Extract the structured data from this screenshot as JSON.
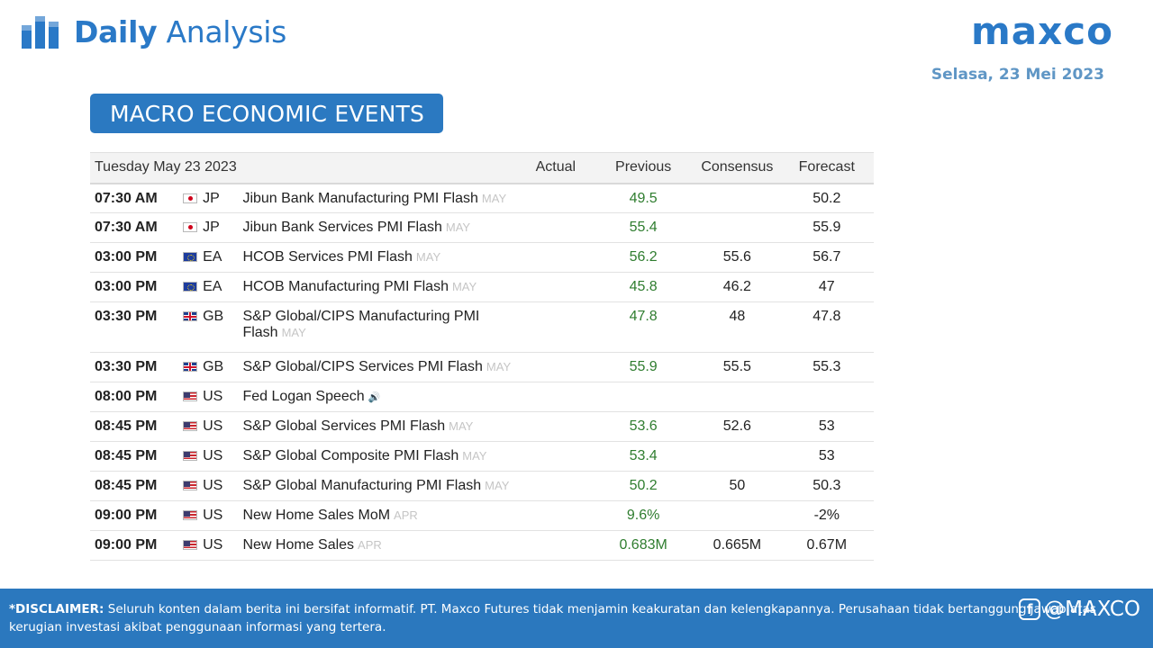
{
  "header": {
    "title_bold": "Daily",
    "title_light": "Analysis",
    "logo_text": "maxco",
    "date": "Selasa, 23 Mei 2023"
  },
  "section_title": "MACRO ECONOMIC EVENTS",
  "table": {
    "headers": {
      "date": "Tuesday May 23 2023",
      "actual": "Actual",
      "previous": "Previous",
      "consensus": "Consensus",
      "forecast": "Forecast"
    },
    "rows": [
      {
        "time": "07:30 AM",
        "flag": "jp",
        "currency": "JP",
        "event": "Jibun Bank Manufacturing PMI Flash",
        "period": "MAY",
        "actual": "",
        "previous": "49.5",
        "consensus": "",
        "forecast": "50.2"
      },
      {
        "time": "07:30 AM",
        "flag": "jp",
        "currency": "JP",
        "event": "Jibun Bank Services PMI Flash",
        "period": "MAY",
        "actual": "",
        "previous": "55.4",
        "consensus": "",
        "forecast": "55.9"
      },
      {
        "time": "03:00 PM",
        "flag": "ea",
        "currency": "EA",
        "event": "HCOB Services PMI Flash",
        "period": "MAY",
        "actual": "",
        "previous": "56.2",
        "consensus": "55.6",
        "forecast": "56.7"
      },
      {
        "time": "03:00 PM",
        "flag": "ea",
        "currency": "EA",
        "event": "HCOB Manufacturing PMI Flash",
        "period": "MAY",
        "actual": "",
        "previous": "45.8",
        "consensus": "46.2",
        "forecast": "47"
      },
      {
        "time": "03:30 PM",
        "flag": "gb",
        "currency": "GB",
        "event": "S&P Global/CIPS Manufacturing PMI Flash",
        "period": "MAY",
        "actual": "",
        "previous": "47.8",
        "consensus": "48",
        "forecast": "47.8",
        "tall": true
      },
      {
        "time": "03:30 PM",
        "flag": "gb",
        "currency": "GB",
        "event": "S&P Global/CIPS Services PMI Flash",
        "period": "MAY",
        "actual": "",
        "previous": "55.9",
        "consensus": "55.5",
        "forecast": "55.3"
      },
      {
        "time": "08:00 PM",
        "flag": "us",
        "currency": "US",
        "event": "Fed Logan Speech",
        "period": "",
        "speech": true,
        "actual": "",
        "previous": "",
        "consensus": "",
        "forecast": ""
      },
      {
        "time": "08:45 PM",
        "flag": "us",
        "currency": "US",
        "event": "S&P Global Services PMI Flash",
        "period": "MAY",
        "actual": "",
        "previous": "53.6",
        "consensus": "52.6",
        "forecast": "53"
      },
      {
        "time": "08:45 PM",
        "flag": "us",
        "currency": "US",
        "event": "S&P Global Composite PMI Flash",
        "period": "MAY",
        "actual": "",
        "previous": "53.4",
        "consensus": "",
        "forecast": "53"
      },
      {
        "time": "08:45 PM",
        "flag": "us",
        "currency": "US",
        "event": "S&P Global Manufacturing PMI Flash",
        "period": "MAY",
        "actual": "",
        "previous": "50.2",
        "consensus": "50",
        "forecast": "50.3"
      },
      {
        "time": "09:00 PM",
        "flag": "us",
        "currency": "US",
        "event": "New Home Sales MoM",
        "period": "APR",
        "actual": "",
        "previous": "9.6%",
        "consensus": "",
        "forecast": "-2%"
      },
      {
        "time": "09:00 PM",
        "flag": "us",
        "currency": "US",
        "event": "New Home Sales",
        "period": "APR",
        "actual": "",
        "previous": "0.683M",
        "consensus": "0.665M",
        "forecast": "0.67M"
      }
    ]
  },
  "footer": {
    "disclaimer_label": "*DISCLAIMER:",
    "disclaimer_text": " Seluruh konten dalam berita ini bersifat informatif. PT. Maxco Futures tidak menjamin keakuratan dan kelengkapannya. Perusahaan tidak bertanggung jawab atas kerugian investasi akibat penggunaan informasi yang tertera.",
    "social_handle": "@MAXCO"
  },
  "colors": {
    "brand": "#2a79c7",
    "banner": "#2b79c1",
    "previous_value": "#2f7d2f"
  }
}
